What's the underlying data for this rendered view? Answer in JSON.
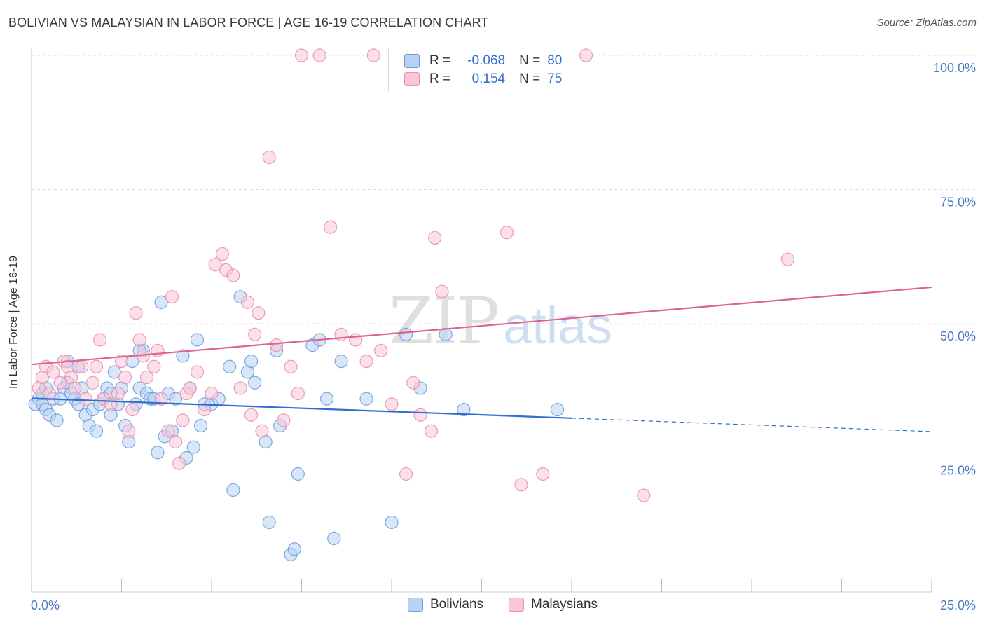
{
  "title": "BOLIVIAN VS MALAYSIAN IN LABOR FORCE | AGE 16-19 CORRELATION CHART",
  "source": "Source: ZipAtlas.com",
  "watermark": {
    "zip": "ZIP",
    "atlas": "atlas"
  },
  "legend": {
    "rows": [
      {
        "r_label": "R =",
        "r_value": "-0.068",
        "n_label": "N =",
        "n_value": "80",
        "color": "#6f9fe0",
        "fill": "#b9d1f3"
      },
      {
        "r_label": "R =",
        "r_value": "0.154",
        "n_label": "N =",
        "n_value": "75",
        "color": "#ea8fb0",
        "fill": "#f7c7d7"
      }
    ]
  },
  "bottom_legend": [
    {
      "label": "Bolivians",
      "color": "#6f9fe0",
      "fill": "#b9d1f3"
    },
    {
      "label": "Malaysians",
      "color": "#ea8fb0",
      "fill": "#f7c7d7"
    }
  ],
  "chart_data": {
    "type": "scatter",
    "title": "BOLIVIAN VS MALAYSIAN IN LABOR FORCE | AGE 16-19 CORRELATION CHART",
    "xlabel": "",
    "ylabel": "In Labor Force | Age 16-19",
    "xlim": [
      0,
      25
    ],
    "ylim": [
      0,
      100
    ],
    "x_tick_labels": [
      "0.0%",
      "25.0%"
    ],
    "y_ticks": [
      25,
      50,
      75,
      100
    ],
    "y_tick_labels": [
      "25.0%",
      "50.0%",
      "75.0%",
      "100.0%"
    ],
    "grid": true,
    "series": [
      {
        "name": "Bolivians",
        "color": "#2f6fd0",
        "trend": {
          "x0": 0,
          "y0": 36.1,
          "x1": 15,
          "y1": 32.4,
          "dash_to_x": 25,
          "dash_y": 29.9
        },
        "points": [
          [
            0.1,
            35
          ],
          [
            0.2,
            36
          ],
          [
            0.3,
            35
          ],
          [
            0.4,
            34
          ],
          [
            0.5,
            33
          ],
          [
            0.3,
            37
          ],
          [
            0.6,
            36
          ],
          [
            0.7,
            32
          ],
          [
            0.8,
            36
          ],
          [
            0.9,
            38
          ],
          [
            1.0,
            39
          ],
          [
            1.1,
            37
          ],
          [
            1.2,
            36
          ],
          [
            1.3,
            35
          ],
          [
            1.4,
            38
          ],
          [
            1.5,
            33
          ],
          [
            1.6,
            31
          ],
          [
            1.7,
            34
          ],
          [
            1.8,
            30
          ],
          [
            1.9,
            35
          ],
          [
            2.0,
            36
          ],
          [
            2.1,
            38
          ],
          [
            2.2,
            33
          ],
          [
            2.3,
            41
          ],
          [
            2.4,
            35
          ],
          [
            2.5,
            38
          ],
          [
            2.6,
            31
          ],
          [
            2.7,
            28
          ],
          [
            2.8,
            43
          ],
          [
            2.9,
            35
          ],
          [
            3.0,
            38
          ],
          [
            3.1,
            45
          ],
          [
            3.2,
            37
          ],
          [
            3.3,
            36
          ],
          [
            3.4,
            36
          ],
          [
            3.5,
            26
          ],
          [
            3.6,
            54
          ],
          [
            3.7,
            29
          ],
          [
            3.8,
            37
          ],
          [
            3.9,
            30
          ],
          [
            4.0,
            36
          ],
          [
            4.2,
            44
          ],
          [
            4.3,
            25
          ],
          [
            4.4,
            38
          ],
          [
            4.5,
            27
          ],
          [
            4.6,
            47
          ],
          [
            4.7,
            31
          ],
          [
            4.8,
            35
          ],
          [
            5.0,
            35
          ],
          [
            5.2,
            36
          ],
          [
            5.5,
            42
          ],
          [
            5.6,
            19
          ],
          [
            5.8,
            55
          ],
          [
            6.0,
            41
          ],
          [
            6.1,
            43
          ],
          [
            6.2,
            39
          ],
          [
            6.5,
            28
          ],
          [
            6.6,
            13
          ],
          [
            6.8,
            45
          ],
          [
            6.9,
            31
          ],
          [
            7.2,
            7
          ],
          [
            7.3,
            8
          ],
          [
            7.4,
            22
          ],
          [
            7.8,
            46
          ],
          [
            8.0,
            47
          ],
          [
            8.2,
            36
          ],
          [
            8.4,
            10
          ],
          [
            8.6,
            43
          ],
          [
            9.3,
            36
          ],
          [
            10.0,
            13
          ],
          [
            10.4,
            48
          ],
          [
            10.8,
            38
          ],
          [
            11.5,
            48
          ],
          [
            12.0,
            34
          ],
          [
            14.6,
            34
          ],
          [
            1.0,
            43
          ],
          [
            1.3,
            42
          ],
          [
            2.2,
            37
          ],
          [
            0.4,
            38
          ],
          [
            3.0,
            45
          ]
        ]
      },
      {
        "name": "Malaysians",
        "color": "#e0628f",
        "trend": {
          "x0": 0,
          "y0": 42.4,
          "x1": 25,
          "y1": 56.8
        },
        "points": [
          [
            0.2,
            38
          ],
          [
            0.3,
            40
          ],
          [
            0.4,
            42
          ],
          [
            0.5,
            37
          ],
          [
            0.6,
            41
          ],
          [
            0.8,
            39
          ],
          [
            0.9,
            43
          ],
          [
            1.0,
            42
          ],
          [
            1.1,
            40
          ],
          [
            1.2,
            38
          ],
          [
            1.4,
            42
          ],
          [
            1.5,
            36
          ],
          [
            1.7,
            39
          ],
          [
            1.8,
            42
          ],
          [
            1.9,
            47
          ],
          [
            2.0,
            36
          ],
          [
            2.2,
            35
          ],
          [
            2.4,
            37
          ],
          [
            2.5,
            43
          ],
          [
            2.6,
            40
          ],
          [
            2.7,
            30
          ],
          [
            2.8,
            34
          ],
          [
            2.9,
            52
          ],
          [
            3.0,
            47
          ],
          [
            3.1,
            44
          ],
          [
            3.2,
            40
          ],
          [
            3.4,
            42
          ],
          [
            3.5,
            45
          ],
          [
            3.6,
            36
          ],
          [
            3.8,
            30
          ],
          [
            3.9,
            55
          ],
          [
            4.0,
            28
          ],
          [
            4.1,
            24
          ],
          [
            4.2,
            32
          ],
          [
            4.3,
            37
          ],
          [
            4.4,
            38
          ],
          [
            4.6,
            41
          ],
          [
            4.8,
            34
          ],
          [
            5.0,
            37
          ],
          [
            5.1,
            61
          ],
          [
            5.3,
            63
          ],
          [
            5.4,
            60
          ],
          [
            5.6,
            59
          ],
          [
            5.8,
            38
          ],
          [
            6.0,
            54
          ],
          [
            6.1,
            33
          ],
          [
            6.2,
            48
          ],
          [
            6.3,
            52
          ],
          [
            6.4,
            30
          ],
          [
            6.6,
            81
          ],
          [
            6.8,
            46
          ],
          [
            7.0,
            32
          ],
          [
            7.2,
            42
          ],
          [
            7.4,
            37
          ],
          [
            7.5,
            100
          ],
          [
            8.0,
            100
          ],
          [
            8.3,
            68
          ],
          [
            8.6,
            48
          ],
          [
            9.0,
            47
          ],
          [
            9.3,
            43
          ],
          [
            9.5,
            100
          ],
          [
            9.7,
            45
          ],
          [
            10.0,
            35
          ],
          [
            10.4,
            22
          ],
          [
            10.6,
            39
          ],
          [
            10.8,
            33
          ],
          [
            11.1,
            30
          ],
          [
            11.2,
            66
          ],
          [
            11.4,
            56
          ],
          [
            13.2,
            67
          ],
          [
            13.6,
            20
          ],
          [
            14.2,
            22
          ],
          [
            15.4,
            100
          ],
          [
            17.0,
            18
          ],
          [
            21.0,
            62
          ]
        ]
      }
    ]
  }
}
